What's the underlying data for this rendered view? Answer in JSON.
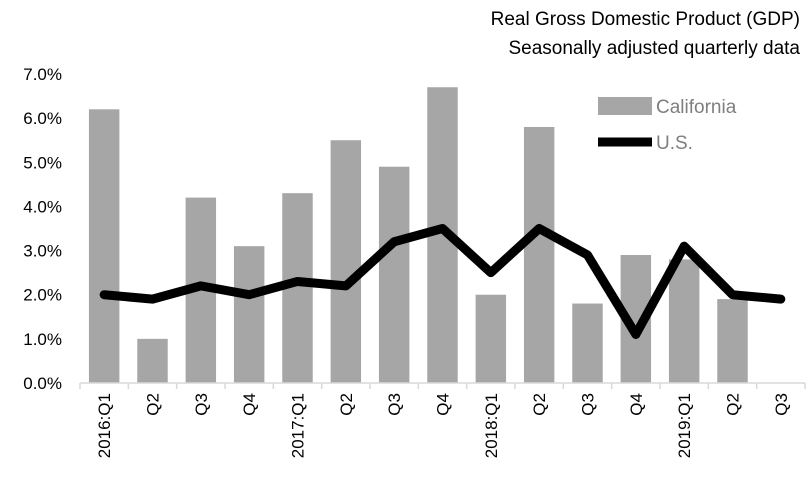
{
  "chart_data": {
    "type": "bar",
    "title": "Real Gross Domestic Product (GDP)",
    "subtitle": "Seasonally adjusted quarterly data",
    "categories": [
      "2016:Q1",
      "Q2",
      "Q3",
      "Q4",
      "2017:Q1",
      "Q2",
      "Q3",
      "Q4",
      "2018:Q1",
      "Q2",
      "Q3",
      "Q4",
      "2019:Q1",
      "Q2",
      "Q3"
    ],
    "series": [
      {
        "name": "California",
        "type": "bar",
        "color": "#a6a6a6",
        "values": [
          6.2,
          1.0,
          4.2,
          3.1,
          4.3,
          5.5,
          4.9,
          6.7,
          2.0,
          5.8,
          1.8,
          2.9,
          2.8,
          1.9,
          null
        ]
      },
      {
        "name": "U.S.",
        "type": "line",
        "color": "#000000",
        "values": [
          2.0,
          1.9,
          2.2,
          2.0,
          2.3,
          2.2,
          3.2,
          3.5,
          2.5,
          3.5,
          2.9,
          1.1,
          3.1,
          2.0,
          1.9
        ]
      }
    ],
    "yticks": [
      "0.0%",
      "1.0%",
      "2.0%",
      "3.0%",
      "4.0%",
      "5.0%",
      "6.0%",
      "7.0%"
    ],
    "ylim": [
      0,
      7
    ],
    "xlabel": "",
    "ylabel": "",
    "grid": false,
    "legend": "top-right"
  }
}
